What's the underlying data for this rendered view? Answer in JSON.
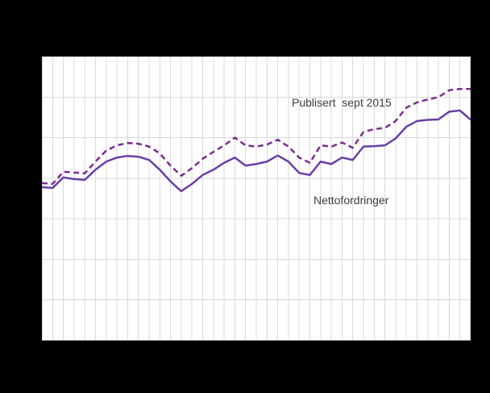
{
  "chart_data": {
    "type": "line",
    "x": [
      0,
      1,
      2,
      3,
      4,
      5,
      6,
      7,
      8,
      9,
      10,
      11,
      12,
      13,
      14,
      15,
      16,
      17,
      18,
      19,
      20,
      21,
      22,
      23,
      24,
      25,
      26,
      27,
      28,
      29,
      30,
      31,
      32,
      33,
      34,
      35,
      36,
      37,
      38,
      39,
      40
    ],
    "series": [
      {
        "name": "Publisert  sept 2015",
        "style": "dashed",
        "color": "#7b2d8f",
        "values": [
          3.88,
          3.86,
          4.16,
          4.14,
          4.12,
          4.41,
          4.68,
          4.81,
          4.87,
          4.85,
          4.78,
          4.61,
          4.31,
          4.06,
          4.25,
          4.48,
          4.65,
          4.81,
          5.0,
          4.81,
          4.78,
          4.83,
          4.95,
          4.78,
          4.51,
          4.38,
          4.81,
          4.78,
          4.88,
          4.75,
          5.14,
          5.21,
          5.24,
          5.41,
          5.74,
          5.87,
          5.94,
          6.0,
          6.17,
          6.2,
          6.2
        ]
      },
      {
        "name": "Nettofordringer",
        "style": "solid",
        "color": "#6a3fa4",
        "values": [
          3.78,
          3.76,
          4.02,
          3.98,
          3.96,
          4.21,
          4.41,
          4.51,
          4.55,
          4.53,
          4.45,
          4.21,
          3.92,
          3.68,
          3.86,
          4.08,
          4.21,
          4.38,
          4.51,
          4.31,
          4.35,
          4.41,
          4.56,
          4.41,
          4.13,
          4.08,
          4.41,
          4.35,
          4.51,
          4.45,
          4.78,
          4.79,
          4.81,
          4.98,
          5.27,
          5.41,
          5.44,
          5.45,
          5.64,
          5.67,
          5.44
        ]
      }
    ],
    "title": "",
    "xlabel": "",
    "ylabel": "",
    "xlim": [
      0,
      40
    ],
    "ylim": [
      0,
      7
    ],
    "x_gridline_count": 41,
    "y_gridline_count": 8,
    "grid": "on",
    "gridline_color": "#d9d9d9",
    "plot_background": "#ffffff",
    "outer_background": "#000000",
    "legend_position": "inline-annotations",
    "annotations": [
      {
        "text": "Publisert  sept 2015",
        "attached_to_series": 0
      },
      {
        "text": "Nettofordringer",
        "attached_to_series": 1
      }
    ]
  }
}
